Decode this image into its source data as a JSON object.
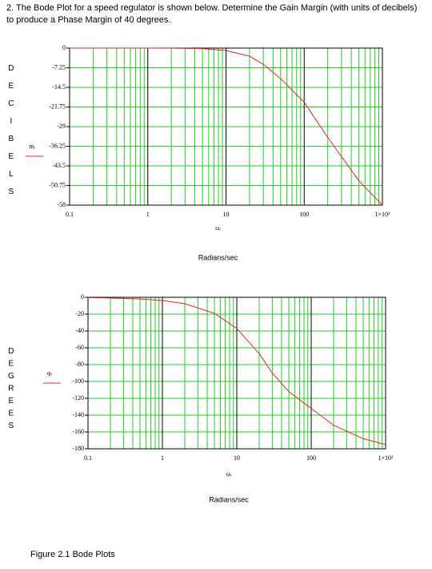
{
  "question": "2. The Bode Plot for a speed regulator is shown below.  Determine the Gain Margin (with units of decibels) to produce a Phase Margin of 40 degrees.",
  "caption": "Figure 2.1 Bode Plots",
  "chart_data": [
    {
      "type": "line",
      "y_label": "DECIBELS",
      "x_label": "ωᵢ",
      "x_title": "Radians/sec",
      "x_scale": "log",
      "grid": true,
      "grid_color": "#22cc22",
      "major_grid_color": "#000000",
      "x": [
        0.1,
        0.2,
        0.5,
        1,
        2,
        5,
        10,
        20,
        30,
        50,
        100,
        200,
        500,
        1000
      ],
      "series": [
        {
          "name": "mᵢ",
          "color": "#e8202a",
          "values": [
            0,
            0,
            0,
            0,
            -0.02,
            -0.2,
            -0.9,
            -3,
            -6,
            -11.3,
            -20,
            -33,
            -49,
            -58
          ]
        }
      ],
      "xlim": [
        0.1,
        1000
      ],
      "xticks": [
        0.1,
        1,
        10,
        100,
        {
          "value": 1000,
          "label": "1×10³"
        }
      ],
      "ylim": [
        -58,
        0
      ],
      "yticks": [
        0,
        -7.25,
        -14.5,
        -21.75,
        -29,
        -36.25,
        -43.5,
        -50.75,
        -58
      ]
    },
    {
      "type": "line",
      "y_label": "DEGREES",
      "x_label": "ωᵢ",
      "x_title": "Radians/sec",
      "x_scale": "log",
      "grid": true,
      "grid_color": "#22cc22",
      "major_grid_color": "#000000",
      "x": [
        0.1,
        0.2,
        0.5,
        1,
        2,
        5,
        10,
        20,
        30,
        50,
        100,
        200,
        500,
        1000
      ],
      "series": [
        {
          "name": "φᵢ",
          "color": "#e8202a",
          "values": [
            -0.4,
            -0.8,
            -1.9,
            -3.8,
            -7.6,
            -19,
            -37,
            -67,
            -90,
            -112,
            -132,
            -152,
            -168,
            -175
          ]
        }
      ],
      "xlim": [
        0.1,
        1000
      ],
      "xticks": [
        0.1,
        1,
        10,
        100,
        {
          "value": 1000,
          "label": "1×10³"
        }
      ],
      "ylim": [
        -180,
        0
      ],
      "yticks": [
        0,
        -20,
        -40,
        -60,
        -80,
        -100,
        -120,
        -140,
        -160,
        -180
      ]
    }
  ]
}
